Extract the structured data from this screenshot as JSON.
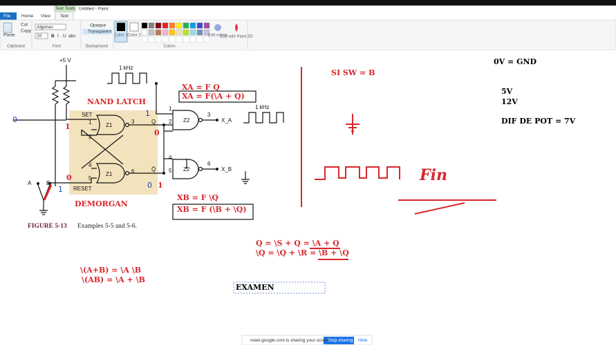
{
  "window": {
    "title": "Untitled - Paint",
    "context_tab": "Text Tools"
  },
  "tabs": [
    "File",
    "Home",
    "View",
    "Text"
  ],
  "ribbon": {
    "clipboard": {
      "label": "Clipboard",
      "paste": "Paste",
      "cut": "Cut",
      "copy": "Copy"
    },
    "font": {
      "label": "Font",
      "family": "Algerian",
      "size": "20",
      "bold": "B",
      "italic": "I",
      "underline": "U",
      "strike": "abc"
    },
    "background": {
      "label": "Background",
      "opaque": "Opaque",
      "transparent": "Transparent"
    },
    "colors": {
      "label": "Colors",
      "color1": "Color 1",
      "color2": "Color 2",
      "edit": "Edit colors",
      "paint3d": "Edit with Paint 3D"
    }
  },
  "canvas": {
    "circuit": {
      "supply": "+5 V",
      "clock1": "1 kHz",
      "clock2": "1 kHz",
      "set": "SET",
      "reset": "RESET",
      "gates": [
        "Z1",
        "Z1",
        "Z2",
        "Z2"
      ],
      "pins": [
        "1",
        "2",
        "3",
        "4",
        "5",
        "6",
        "1",
        "2",
        "3",
        "4",
        "5",
        "6"
      ],
      "outputs": [
        "Q",
        "Q̄",
        "X_A",
        "X_B"
      ],
      "switch": [
        "A",
        "B"
      ]
    },
    "caption": {
      "label": "FIGURE 5-13",
      "text": "Examples 5-5 and 5-6."
    },
    "notes": [
      {
        "text": "NAND LATCH",
        "color": "red"
      },
      {
        "text": "0",
        "color": "blue"
      },
      {
        "text": "1",
        "color": "red"
      },
      {
        "text": "1",
        "color": "blue"
      },
      {
        "text": "0",
        "color": "red"
      },
      {
        "text": "0",
        "color": "red"
      },
      {
        "text": "1",
        "color": "blue"
      },
      {
        "text": "0",
        "color": "blue"
      },
      {
        "text": "1",
        "color": "red"
      },
      {
        "text": "DEMORGAN",
        "color": "red"
      },
      {
        "text": "XA = F  Q",
        "color": "red"
      },
      {
        "text": "XA = F(\\A + Q)",
        "color": "red"
      },
      {
        "text": "XB = F \\Q",
        "color": "red"
      },
      {
        "text": "XB = F (\\B + \\Q)",
        "color": "red"
      },
      {
        "text": "SI SW = B",
        "color": "red"
      },
      {
        "text": "0V = GND",
        "color": "black"
      },
      {
        "text": "5V",
        "color": "black"
      },
      {
        "text": "12V",
        "color": "black"
      },
      {
        "text": "DIF DE POT = 7V",
        "color": "black"
      },
      {
        "text": "Q = \\S + Q = \\A + Q",
        "color": "red"
      },
      {
        "text": "\\Q = \\Q + \\R = \\B + \\Q",
        "color": "red"
      },
      {
        "text": "\\(A+B) = \\A \\B",
        "color": "red"
      },
      {
        "text": "\\(AB) = \\A + \\B",
        "color": "red"
      },
      {
        "text": "EXAMEN",
        "color": "black"
      },
      {
        "text": "Fin",
        "color": "red"
      }
    ]
  },
  "share_bar": {
    "message": "meet.google.com is sharing your screen.",
    "stop": "Stop sharing",
    "hide": "Hide"
  }
}
